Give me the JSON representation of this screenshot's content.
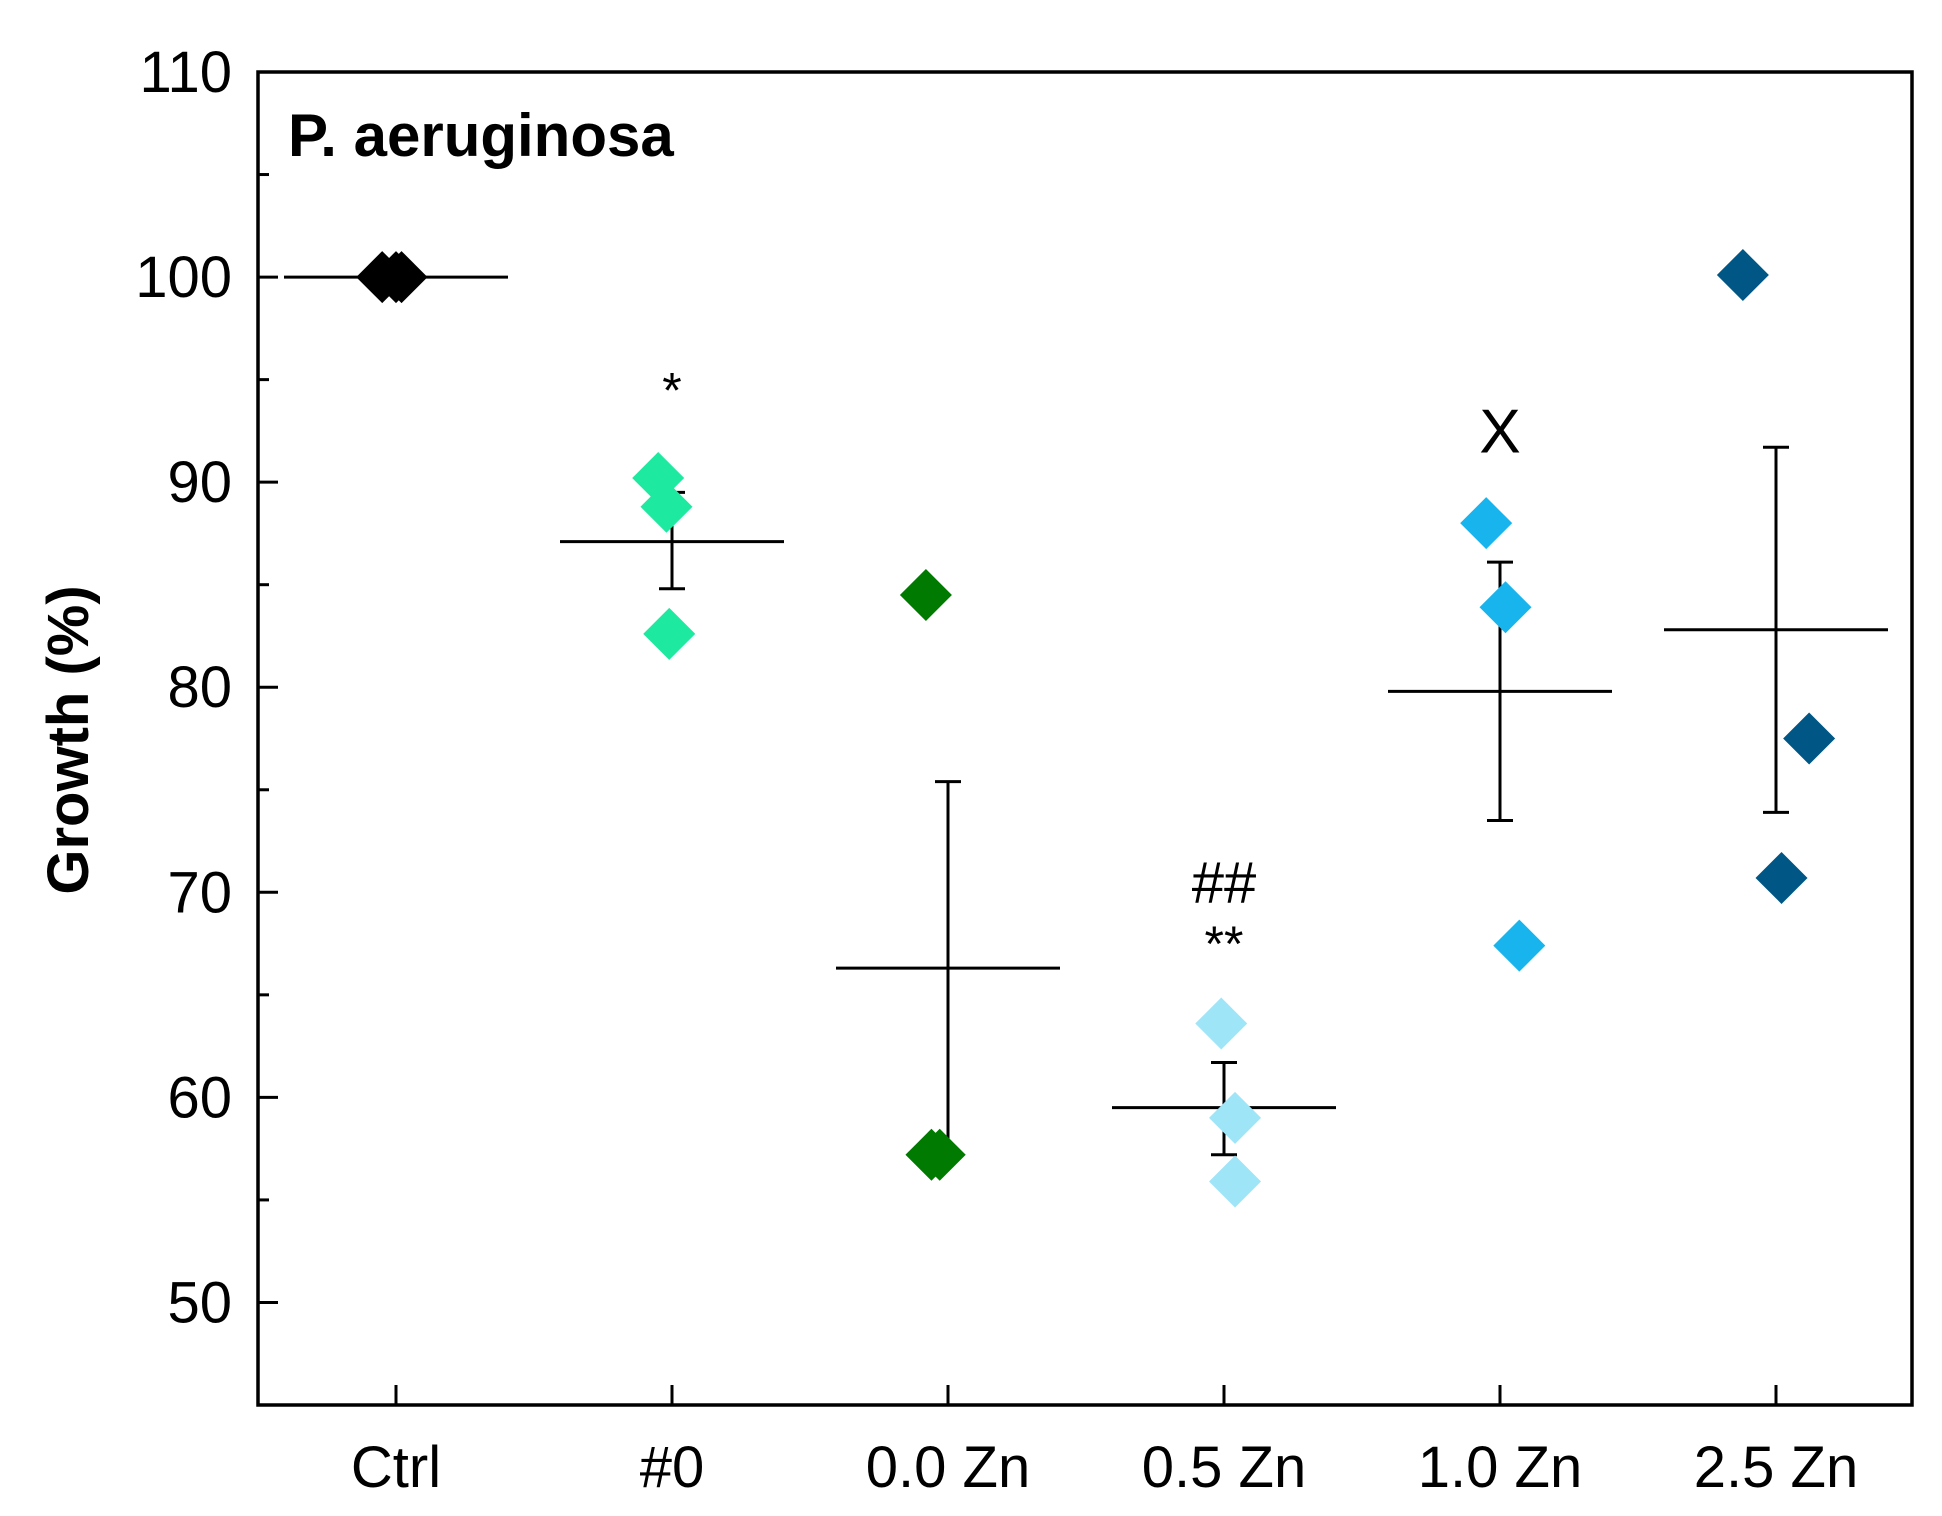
{
  "chart_data": {
    "type": "scatter",
    "title": "P. aeruginosa",
    "xlabel": "",
    "ylabel": "Growth (%)",
    "ylim": [
      45,
      110
    ],
    "y_major_ticks": [
      50,
      60,
      70,
      80,
      90,
      100,
      110
    ],
    "categories": [
      "Ctrl",
      "#0",
      "0.0 Zn",
      "0.5 Zn",
      "1.0 Zn",
      "2.5 Zn"
    ],
    "series": [
      {
        "name": "Ctrl",
        "color": "#000000",
        "points": [
          [
            -0.05,
            100
          ],
          [
            0.0,
            100
          ],
          [
            0.02,
            100
          ]
        ],
        "mean": 100,
        "error": null
      },
      {
        "name": "#0",
        "color": "#1de9a0",
        "points": [
          [
            -0.05,
            90.2
          ],
          [
            -0.02,
            88.8
          ],
          [
            -0.01,
            82.6
          ]
        ],
        "mean": 87.1,
        "error": [
          84.8,
          89.5
        ]
      },
      {
        "name": "0.0 Zn",
        "color": "#007a00",
        "points": [
          [
            -0.08,
            84.5
          ],
          [
            -0.06,
            57.2
          ],
          [
            -0.03,
            57.2
          ]
        ],
        "mean": 66.3,
        "error": [
          57.2,
          75.4
        ]
      },
      {
        "name": "0.5 Zn",
        "color": "#9fe5f8",
        "points": [
          [
            -0.01,
            63.6
          ],
          [
            0.04,
            59.0
          ],
          [
            0.04,
            55.9
          ]
        ],
        "mean": 59.5,
        "error": [
          57.2,
          61.7
        ]
      },
      {
        "name": "1.0 Zn",
        "color": "#18b4ee",
        "points": [
          [
            -0.05,
            88.0
          ],
          [
            0.02,
            83.9
          ],
          [
            0.07,
            67.4
          ]
        ],
        "mean": 79.8,
        "error": [
          73.5,
          86.1
        ]
      },
      {
        "name": "2.5 Zn",
        "color": "#005685",
        "points": [
          [
            -0.12,
            100.1
          ],
          [
            0.12,
            77.5
          ],
          [
            0.02,
            70.7
          ]
        ],
        "mean": 82.8,
        "error": [
          73.9,
          91.7
        ]
      }
    ],
    "annotations": [
      {
        "category": "#0",
        "text": "*",
        "y": 94.5
      },
      {
        "category": "1.0 Zn",
        "text": "X",
        "y": 92.5
      },
      {
        "category": "0.5 Zn",
        "text": "##",
        "y": 70.5
      },
      {
        "category": "0.5 Zn",
        "text": "**",
        "y": 67.5
      }
    ]
  }
}
